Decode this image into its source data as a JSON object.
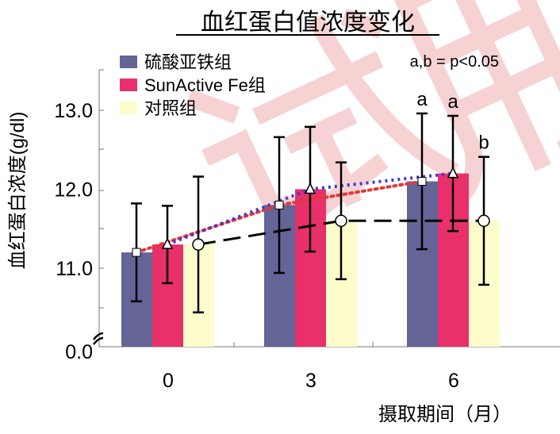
{
  "watermark": "试用",
  "chart_data": {
    "type": "bar",
    "title": "血红蛋白值浓度变化",
    "xlabel": "摄取期间（月）",
    "ylabel": "血红蛋白浓度(g/dl)",
    "categories": [
      "0",
      "3",
      "6"
    ],
    "ylim": [
      10.0,
      13.5
    ],
    "yticks": [
      "11.0",
      "12.0",
      "13.0"
    ],
    "y_zero_label": "0.0",
    "axis_break": true,
    "significance_note": "a,b =  p<0.05",
    "series": [
      {
        "name": "硫酸亚铁组",
        "color": "#646496",
        "marker": "square",
        "line": "dotted-red",
        "line_color": "#e03a3a",
        "values": [
          11.2,
          11.8,
          12.1
        ],
        "errors": [
          0.62,
          0.86,
          0.86
        ],
        "labels": [
          "",
          "",
          "a"
        ]
      },
      {
        "name": "SunActive Fe组",
        "color": "#e8306a",
        "marker": "triangle",
        "line": "dotted-blue",
        "line_color": "#3a3ae0",
        "values": [
          11.3,
          12.0,
          12.2
        ],
        "errors": [
          0.49,
          0.79,
          0.73
        ],
        "labels": [
          "",
          "",
          "a"
        ]
      },
      {
        "name": "对照组",
        "color": "#fdfdcc",
        "marker": "circle",
        "line": "dashed",
        "line_color": "#000000",
        "values": [
          11.3,
          11.6,
          11.6
        ],
        "errors": [
          0.86,
          0.74,
          0.81
        ],
        "labels": [
          "",
          "",
          "b"
        ]
      }
    ],
    "legend_position": "top-left",
    "grid": false
  }
}
